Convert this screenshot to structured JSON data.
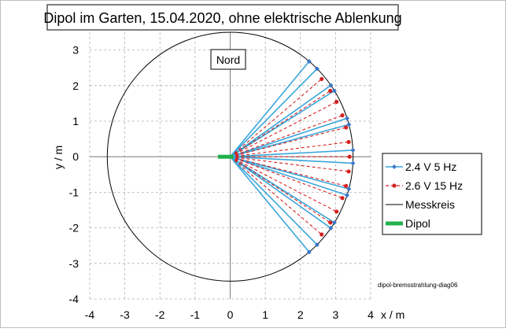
{
  "chart_data": {
    "type": "scatter",
    "title": "Dipol im Garten, 15.04.2020, ohne elektrische Ablenkung",
    "xlabel": "x / m",
    "ylabel": "y / m",
    "xlim": [
      -4,
      4
    ],
    "ylim": [
      -4,
      3.5
    ],
    "x_ticks": [
      "-4",
      "-3",
      "-2",
      "-1",
      "0",
      "1",
      "2",
      "3",
      "4"
    ],
    "y_ticks": [
      "3",
      "2",
      "1",
      "0",
      "-1",
      "-2",
      "-3",
      "-4"
    ],
    "grid": true,
    "legend_position": "right",
    "annotations": {
      "north_label": "Nord",
      "footnote": "dipol-bremsstrahlung-diag06"
    },
    "series": [
      {
        "name": "2.4 V 5 Hz",
        "color": "#3aa6db",
        "marker": "diamond",
        "line_style": "solid",
        "note": "Strahlen vom Ursprung zu Messpunkten auf dem Kreis (Radius 3,5 m)",
        "angles_deg": [
          50,
          45,
          35,
          32,
          18,
          15,
          3,
          -3,
          -15,
          -18,
          -32,
          -35,
          -45,
          -50
        ],
        "radius": 3.5
      },
      {
        "name": "2.6 V 15 Hz",
        "color": "#d62020",
        "marker": "circle",
        "line_style": "dashed",
        "note": "Strahlen vom Ursprung zu Messpunkten auf dem Kreis (Radius 3,4 m)",
        "angles_deg": [
          40,
          33,
          27,
          20,
          14,
          7,
          0,
          -7,
          -14,
          -20,
          -27,
          -33,
          -40
        ],
        "radius": 3.4
      },
      {
        "name": "Messkreis",
        "color": "#000000",
        "marker": "none",
        "line_style": "solid",
        "center": [
          0,
          0
        ],
        "radius": 3.5
      },
      {
        "name": "Dipol",
        "color": "#22b14c",
        "marker": "none",
        "line_style": "thick",
        "x": [
          -0.35,
          0.1
        ],
        "y": [
          0,
          0
        ]
      }
    ]
  }
}
